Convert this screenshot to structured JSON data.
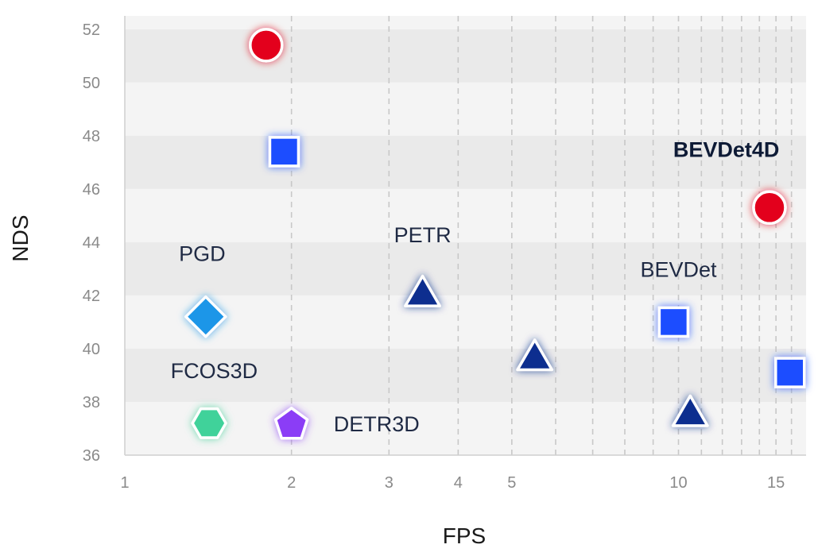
{
  "chart_data": {
    "type": "scatter",
    "xlabel": "FPS",
    "ylabel": "NDS",
    "x_scale": "log",
    "xlim": [
      1,
      17
    ],
    "ylim": [
      36,
      52.5
    ],
    "x_ticks": [
      1,
      2,
      3,
      4,
      5,
      10,
      15
    ],
    "x_grid": [
      1,
      2,
      3,
      4,
      5,
      6,
      7,
      8,
      9,
      10,
      11,
      12,
      13,
      14,
      15,
      16
    ],
    "y_ticks": [
      36,
      38,
      40,
      42,
      44,
      46,
      48,
      50,
      52
    ],
    "grid": true,
    "colors": {
      "band_light": "#f4f4f4",
      "band_dark": "#eaeaea",
      "red": "#e3001b",
      "blue": "#1f4dff",
      "navy": "#0b2d8f",
      "light_blue": "#1e96e8",
      "green": "#3fd29a",
      "purple": "#8b3cf6"
    },
    "points": [
      {
        "x": 1.8,
        "y": 51.4,
        "shape": "circle",
        "color": "#e3001b"
      },
      {
        "x": 14.6,
        "y": 45.3,
        "shape": "circle",
        "color": "#e3001b"
      },
      {
        "x": 1.94,
        "y": 47.4,
        "shape": "square",
        "color": "#1f4dff"
      },
      {
        "x": 9.8,
        "y": 41.0,
        "shape": "square",
        "color": "#1f4dff"
      },
      {
        "x": 15.9,
        "y": 39.1,
        "shape": "square",
        "color": "#1f4dff"
      },
      {
        "x": 3.45,
        "y": 42.1,
        "shape": "triangle",
        "color": "#0b2d8f"
      },
      {
        "x": 5.5,
        "y": 39.7,
        "shape": "triangle",
        "color": "#0b2d8f"
      },
      {
        "x": 10.5,
        "y": 37.6,
        "shape": "triangle",
        "color": "#0b2d8f"
      },
      {
        "x": 1.4,
        "y": 41.2,
        "shape": "diamond",
        "color": "#1e96e8"
      },
      {
        "x": 1.42,
        "y": 37.2,
        "shape": "hexagon",
        "color": "#3fd29a"
      },
      {
        "x": 2.0,
        "y": 37.2,
        "shape": "pentagon",
        "color": "#8b3cf6"
      }
    ],
    "annotations": [
      {
        "text": "PGD",
        "x": 1.38,
        "y": 43.3,
        "bold": false
      },
      {
        "text": "PETR",
        "x": 3.45,
        "y": 44.0,
        "bold": false
      },
      {
        "text": "BEVDet",
        "x": 10.0,
        "y": 42.7,
        "bold": false
      },
      {
        "text": "BEVDet4D",
        "x": 12.2,
        "y": 47.2,
        "bold": true
      },
      {
        "text": "FCOS3D",
        "x": 1.45,
        "y": 38.9,
        "bold": false
      },
      {
        "text": "DETR3D",
        "x": 2.85,
        "y": 36.9,
        "bold": false
      }
    ]
  }
}
